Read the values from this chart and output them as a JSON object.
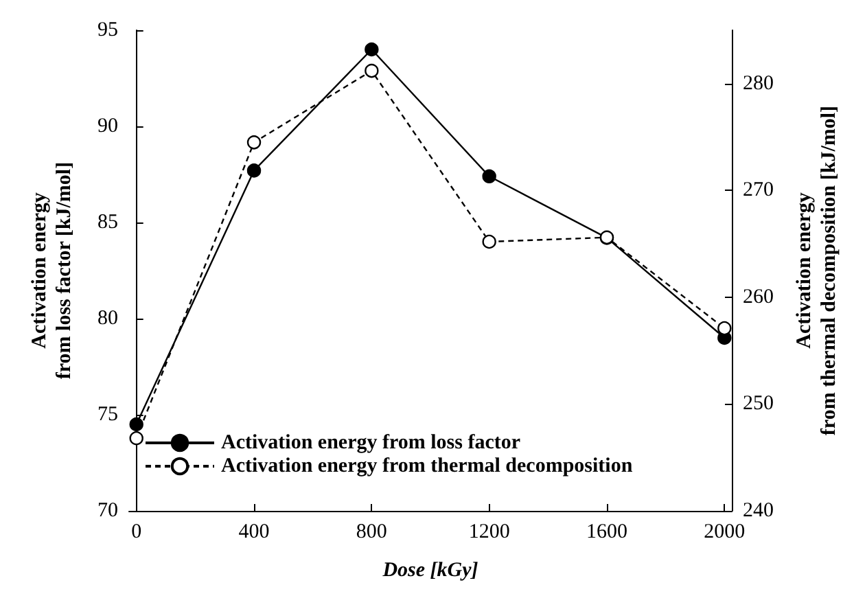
{
  "chart_data": {
    "type": "line",
    "xlabel": "Dose [kGy]",
    "ylabel": "Activation energy\nfrom loss factor [kJ/mol]",
    "y2label": "Activation energy\nfrom thermal decomposition [kJ/mol]",
    "x": [
      0,
      400,
      800,
      1200,
      1600,
      2000
    ],
    "series": [
      {
        "name": "Activation energy from loss factor",
        "color": "#000000",
        "values": [
          74.5,
          87.7,
          94.0,
          87.4,
          84.2,
          79.0
        ],
        "marker": "circle",
        "line_style": "solid"
      },
      {
        "name": "Activation energy from thermal decomposition",
        "color": "#000000",
        "values": [
          246.8,
          274.5,
          281.2,
          265.2,
          265.6,
          257.1
        ],
        "marker": "circle",
        "line_style": "dashed",
        "axis": "y2"
      }
    ],
    "xlim": [
      -25,
      2025
    ],
    "xticks": [
      0,
      400,
      800,
      1200,
      1600,
      2000
    ],
    "ylim": [
      70,
      95
    ],
    "yticks": [
      70,
      75,
      80,
      85,
      90,
      95
    ],
    "y2lim": [
      240,
      285
    ],
    "y2ticks": [
      240,
      250,
      260,
      270,
      280
    ],
    "grid": false,
    "legend": "bottom left"
  }
}
